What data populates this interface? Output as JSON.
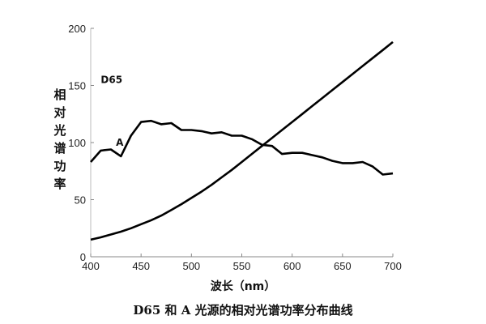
{
  "chart_data": {
    "type": "line",
    "title": "D65 和 A 光源的相对光谱功率分布曲线",
    "xlabel": "波长（nm）",
    "ylabel": "相对光谱功率",
    "xlim": [
      400,
      700
    ],
    "ylim": [
      0,
      200
    ],
    "xticks": [
      400,
      450,
      500,
      550,
      600,
      650,
      700
    ],
    "yticks": [
      0,
      50,
      100,
      150,
      200
    ],
    "grid": false,
    "legend": "inline labels",
    "x": [
      400,
      410,
      420,
      430,
      440,
      450,
      460,
      470,
      480,
      490,
      500,
      510,
      520,
      530,
      540,
      550,
      560,
      570,
      580,
      590,
      600,
      610,
      620,
      630,
      640,
      650,
      660,
      670,
      680,
      690,
      700
    ],
    "series": [
      {
        "name": "A",
        "label_pos": [
          425,
          97
        ],
        "values": [
          83,
          93,
          94,
          88,
          106,
          118,
          119,
          116,
          117,
          111,
          111,
          110,
          108,
          109,
          106,
          106,
          103,
          98,
          97,
          90,
          91,
          91,
          89,
          87,
          84,
          82,
          82,
          83,
          79,
          72,
          73
        ]
      },
      {
        "name": "D65",
        "label_pos": [
          410,
          152
        ],
        "values": [
          15,
          17,
          19.5,
          22,
          25,
          28.5,
          32,
          36,
          41,
          46,
          51.5,
          57,
          63,
          69.5,
          76,
          83,
          90,
          97,
          104,
          111,
          118,
          125,
          132,
          139,
          146,
          153,
          160,
          167,
          174,
          181,
          188
        ]
      }
    ]
  },
  "labels": {
    "title": "D65 和 A 光源的相对光谱功率分布曲线",
    "xlabel": "波长（nm）",
    "ylabel_chars": [
      "相",
      "对",
      "光",
      "谱",
      "功",
      "率"
    ],
    "series_A": "A",
    "series_D65": "D65"
  }
}
